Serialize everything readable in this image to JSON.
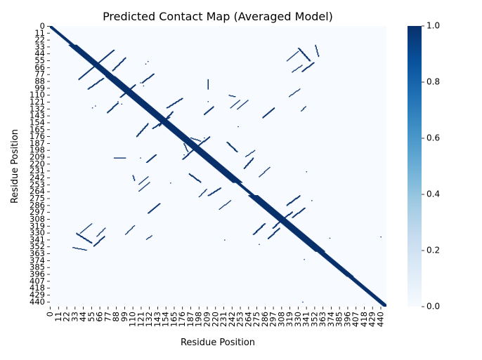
{
  "chart_data": {
    "type": "heatmap",
    "title": "Predicted Contact Map (Averaged Model)",
    "xlabel": "Residue Position",
    "ylabel": "Residue Position",
    "n_residues": 448,
    "value_range": [
      0.0,
      1.0
    ],
    "x_tick_labels": [
      "0",
      "11",
      "22",
      "33",
      "44",
      "55",
      "66",
      "77",
      "88",
      "99",
      "110",
      "121",
      "132",
      "143",
      "154",
      "165",
      "176",
      "187",
      "198",
      "209",
      "220",
      "231",
      "242",
      "253",
      "264",
      "275",
      "286",
      "297",
      "308",
      "319",
      "330",
      "341",
      "352",
      "363",
      "374",
      "385",
      "396",
      "407",
      "418",
      "429",
      "440"
    ],
    "y_tick_labels": [
      "0",
      "11",
      "22",
      "33",
      "44",
      "55",
      "66",
      "77",
      "88",
      "99",
      "110",
      "121",
      "132",
      "143",
      "154",
      "165",
      "176",
      "187",
      "198",
      "209",
      "220",
      "231",
      "242",
      "253",
      "264",
      "275",
      "286",
      "297",
      "308",
      "319",
      "330",
      "341",
      "352",
      "363",
      "374",
      "385",
      "396",
      "407",
      "418",
      "429",
      "440"
    ],
    "colorbar": {
      "ticks": [
        "0.0",
        "0.2",
        "0.4",
        "0.6",
        "0.8",
        "1.0"
      ],
      "colormap": "Blues"
    },
    "diagonal_band_widths": [
      {
        "from": 0,
        "to": 30,
        "width": 2
      },
      {
        "from": 30,
        "to": 80,
        "width": 5
      },
      {
        "from": 80,
        "to": 250,
        "width": 6
      },
      {
        "from": 250,
        "to": 270,
        "width": 2
      },
      {
        "from": 270,
        "to": 360,
        "width": 6
      },
      {
        "from": 360,
        "to": 400,
        "width": 4
      },
      {
        "from": 400,
        "to": 448,
        "width": 3
      }
    ],
    "contact_segments": [
      {
        "i0": 84,
        "j0": 38,
        "i1": 64,
        "j1": 58,
        "width": 2
      },
      {
        "i0": 70,
        "j0": 83,
        "i1": 50,
        "j1": 100,
        "width": 2
      },
      {
        "i0": 110,
        "j0": 96,
        "i1": 93,
        "j1": 113,
        "width": 2
      },
      {
        "i0": 137,
        "j0": 76,
        "i1": 122,
        "j1": 90,
        "width": 2
      },
      {
        "i0": 175,
        "j0": 115,
        "i1": 155,
        "j1": 130,
        "width": 2
      },
      {
        "i0": 158,
        "j0": 145,
        "i1": 136,
        "j1": 163,
        "width": 2
      },
      {
        "i0": 140,
        "j0": 205,
        "i1": 128,
        "j1": 217,
        "width": 2
      },
      {
        "i0": 235,
        "j0": 185,
        "i1": 248,
        "j1": 200,
        "width": 2
      },
      {
        "i0": 263,
        "j0": 118,
        "i1": 249,
        "j1": 132,
        "width": 1
      },
      {
        "i0": 238,
        "j0": 110,
        "i1": 246,
        "j1": 112,
        "width": 1
      },
      {
        "i0": 190,
        "j0": 197,
        "i1": 176,
        "j1": 212,
        "width": 2
      },
      {
        "i0": 200,
        "j0": 183,
        "i1": 187,
        "j1": 178,
        "width": 1
      },
      {
        "i0": 210,
        "j0": 85,
        "i1": 210,
        "j1": 100,
        "width": 1
      },
      {
        "i0": 330,
        "j0": 35,
        "i1": 345,
        "j1": 55,
        "width": 2
      },
      {
        "i0": 350,
        "j0": 58,
        "i1": 335,
        "j1": 72,
        "width": 2
      },
      {
        "i0": 332,
        "j0": 100,
        "i1": 318,
        "j1": 112,
        "width": 1
      },
      {
        "i0": 340,
        "j0": 128,
        "i1": 334,
        "j1": 135,
        "width": 1
      },
      {
        "i0": 338,
        "j0": 290,
        "i1": 322,
        "j1": 305,
        "width": 2
      },
      {
        "i0": 310,
        "j0": 306,
        "i1": 296,
        "j1": 322,
        "width": 2
      },
      {
        "i0": 285,
        "j0": 315,
        "i1": 270,
        "j1": 332,
        "width": 2
      },
      {
        "i0": 145,
        "j0": 283,
        "i1": 130,
        "j1": 298,
        "width": 2
      },
      {
        "i0": 240,
        "j0": 278,
        "i1": 225,
        "j1": 292,
        "width": 1
      },
      {
        "i0": 30,
        "j0": 353,
        "i1": 48,
        "j1": 357,
        "width": 1
      },
      {
        "i0": 55,
        "j0": 315,
        "i1": 40,
        "j1": 330,
        "width": 1
      },
      {
        "i0": 73,
        "j0": 322,
        "i1": 62,
        "j1": 335,
        "width": 1
      },
      {
        "i0": 130,
        "j0": 240,
        "i1": 118,
        "j1": 252,
        "width": 1
      },
      {
        "i0": 226,
        "j0": 258,
        "i1": 210,
        "j1": 270,
        "width": 2
      },
      {
        "i0": 208,
        "j0": 260,
        "i1": 198,
        "j1": 272,
        "width": 1
      }
    ],
    "sparse_points": [
      [
        90,
        120
      ],
      [
        95,
        124
      ],
      [
        348,
        278
      ],
      [
        341,
        232
      ],
      [
        440,
        336
      ],
      [
        372,
        338
      ],
      [
        56,
        130
      ],
      [
        60,
        127
      ],
      [
        160,
        250
      ],
      [
        120,
        210
      ],
      [
        178,
        205
      ]
    ]
  }
}
